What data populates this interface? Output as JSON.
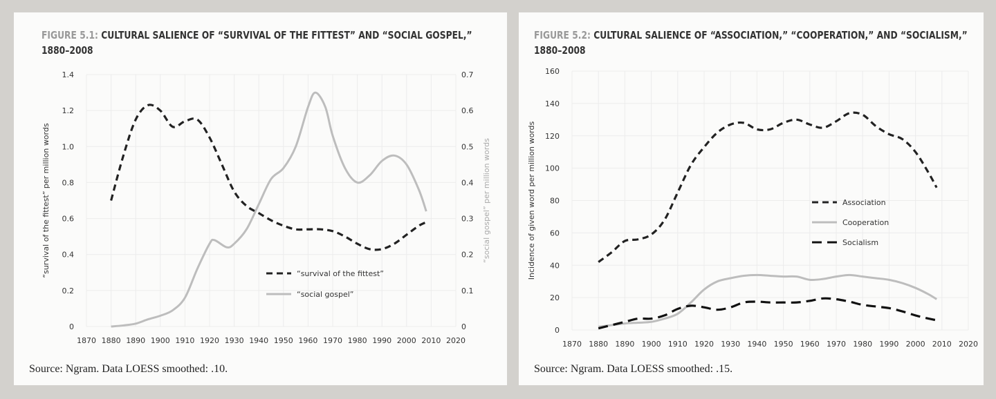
{
  "chart_data": [
    {
      "type": "line",
      "figure_label": "FIGURE 5.1:",
      "title": "CULTURAL SALIENCE OF “SURVIVAL OF THE FITTEST” AND “SOCIAL GOSPEL,”",
      "title_line2": "1880–2008",
      "source": "Source: Ngram. Data LOESS smoothed: .10.",
      "xlabel": "",
      "ylabel": "“survival of the fittest” per million words",
      "y2label": "“social gospel” per million words",
      "xlim": [
        1870,
        2020
      ],
      "ylim": [
        0,
        1.4
      ],
      "y2lim": [
        0,
        0.7
      ],
      "xticks": [
        "1870",
        "1880",
        "1890",
        "1900",
        "1910",
        "1920",
        "1930",
        "1940",
        "1950",
        "1960",
        "1970",
        "1980",
        "1990",
        "2000",
        "2010",
        "2020"
      ],
      "yticks": [
        "0",
        "0.2",
        "0.4",
        "0.6",
        "0.8",
        "1.0",
        "1.2",
        "1.4"
      ],
      "y2ticks": [
        "0",
        "0.1",
        "0.2",
        "0.3",
        "0.4",
        "0.5",
        "0.6",
        "0.7"
      ],
      "legend_position": "lower-right",
      "series": [
        {
          "name": "“survival of the fittest”",
          "axis": "left",
          "style": "dashed",
          "color": "#222222",
          "x": [
            1880,
            1885,
            1890,
            1895,
            1900,
            1905,
            1910,
            1915,
            1920,
            1925,
            1930,
            1935,
            1940,
            1945,
            1950,
            1955,
            1960,
            1965,
            1970,
            1975,
            1980,
            1985,
            1990,
            1995,
            2000,
            2005,
            2008
          ],
          "y": [
            0.7,
            0.95,
            1.15,
            1.23,
            1.2,
            1.11,
            1.14,
            1.15,
            1.05,
            0.9,
            0.75,
            0.67,
            0.63,
            0.59,
            0.56,
            0.54,
            0.54,
            0.54,
            0.53,
            0.5,
            0.46,
            0.43,
            0.43,
            0.46,
            0.51,
            0.56,
            0.58
          ]
        },
        {
          "name": "“social gospel”",
          "axis": "right",
          "style": "solid",
          "color": "#bdbdbd",
          "x": [
            1880,
            1885,
            1890,
            1895,
            1900,
            1905,
            1910,
            1915,
            1920,
            1922,
            1927,
            1930,
            1935,
            1940,
            1945,
            1950,
            1955,
            1960,
            1963,
            1967,
            1970,
            1975,
            1980,
            1985,
            1990,
            1995,
            2000,
            2005,
            2008
          ],
          "y": [
            0,
            0.003,
            0.008,
            0.02,
            0.03,
            0.045,
            0.08,
            0.16,
            0.23,
            0.24,
            0.22,
            0.23,
            0.27,
            0.34,
            0.41,
            0.44,
            0.5,
            0.61,
            0.65,
            0.61,
            0.53,
            0.44,
            0.4,
            0.42,
            0.46,
            0.475,
            0.45,
            0.38,
            0.32
          ]
        }
      ]
    },
    {
      "type": "line",
      "figure_label": "FIGURE 5.2:",
      "title": "CULTURAL SALIENCE OF “ASSOCIATION,” “COOPERATION,” AND “SOCIALISM,”",
      "title_line2": "1880–2008",
      "source": "Source: Ngram. Data LOESS smoothed: .15.",
      "xlabel": "",
      "ylabel": "Incidence of given word per million words",
      "xlim": [
        1870,
        2020
      ],
      "ylim": [
        0,
        160
      ],
      "xticks": [
        "1870",
        "1880",
        "1890",
        "1900",
        "1910",
        "1920",
        "1930",
        "1940",
        "1950",
        "1960",
        "1970",
        "1980",
        "1990",
        "2000",
        "2010",
        "2020"
      ],
      "yticks": [
        "0",
        "20",
        "40",
        "60",
        "80",
        "100",
        "120",
        "140",
        "160"
      ],
      "legend_position": "center-right",
      "series": [
        {
          "name": "Association",
          "style": "dashed",
          "color": "#222222",
          "x": [
            1880,
            1885,
            1890,
            1895,
            1900,
            1905,
            1910,
            1915,
            1920,
            1925,
            1930,
            1935,
            1940,
            1945,
            1950,
            1955,
            1960,
            1965,
            1970,
            1975,
            1980,
            1985,
            1990,
            1995,
            2000,
            2005,
            2008
          ],
          "y": [
            42,
            48,
            55,
            56,
            59,
            68,
            85,
            102,
            113,
            122,
            127,
            128,
            124,
            124,
            128,
            130,
            127,
            125,
            129,
            134,
            133,
            126,
            121,
            118,
            110,
            97,
            88
          ]
        },
        {
          "name": "Cooperation",
          "style": "solid",
          "color": "#bdbdbd",
          "x": [
            1880,
            1885,
            1890,
            1895,
            1900,
            1905,
            1910,
            1915,
            1920,
            1925,
            1930,
            1935,
            1940,
            1945,
            1950,
            1955,
            1960,
            1965,
            1970,
            1975,
            1980,
            1985,
            1990,
            1995,
            2000,
            2005,
            2008
          ],
          "y": [
            2,
            3,
            4,
            4.5,
            5,
            7,
            10,
            17,
            25,
            30,
            32,
            33.5,
            34,
            33.5,
            33,
            33,
            31,
            31.5,
            33,
            34,
            33,
            32,
            31,
            29,
            26,
            22,
            19
          ]
        },
        {
          "name": "Socialism",
          "style": "longdash",
          "color": "#111111",
          "x": [
            1880,
            1885,
            1890,
            1895,
            1900,
            1905,
            1910,
            1915,
            1920,
            1925,
            1930,
            1935,
            1940,
            1945,
            1950,
            1955,
            1960,
            1965,
            1970,
            1975,
            1980,
            1985,
            1990,
            1995,
            2000,
            2005,
            2008
          ],
          "y": [
            1,
            3,
            5,
            7,
            7,
            9,
            13,
            15,
            14,
            12.5,
            14,
            17,
            17.5,
            17,
            17,
            17,
            18,
            19.5,
            19,
            17.5,
            15.5,
            14.5,
            13.5,
            11.5,
            9,
            7,
            6
          ]
        }
      ]
    }
  ]
}
